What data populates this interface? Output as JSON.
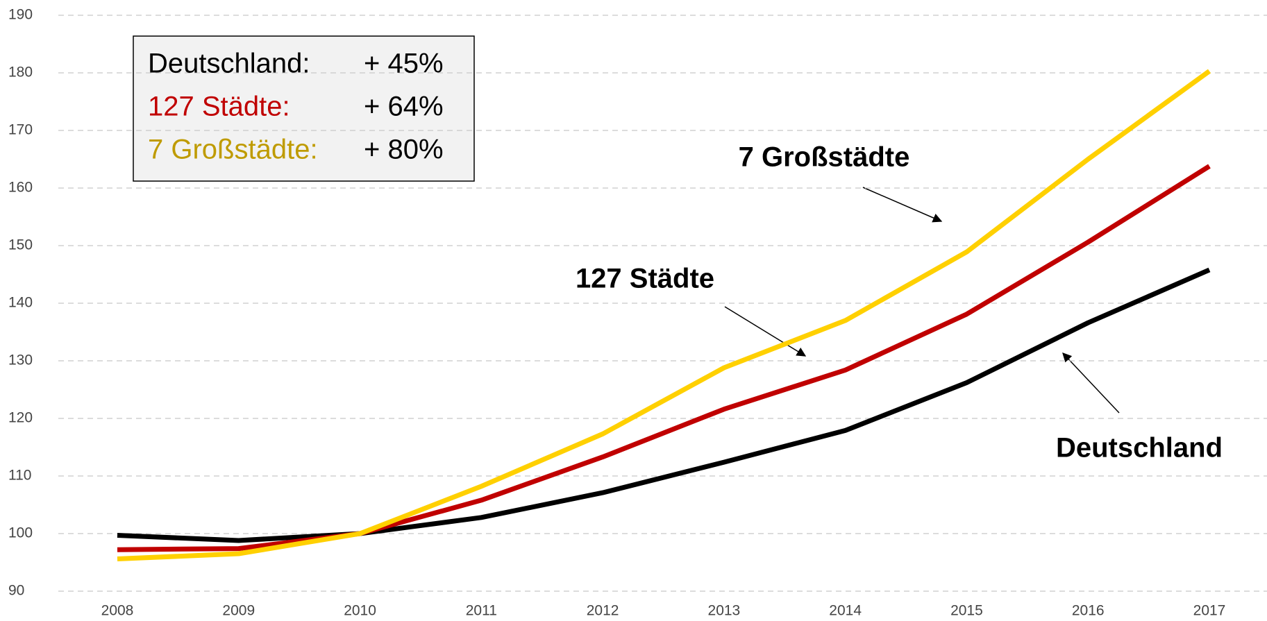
{
  "chart_data": {
    "type": "line",
    "categories": [
      "2008",
      "2009",
      "2010",
      "2011",
      "2012",
      "2013",
      "2014",
      "2015",
      "2016",
      "2017"
    ],
    "series": [
      {
        "name": "Deutschland",
        "color": "#000000",
        "values": [
          99.7,
          98.8,
          100,
          102.8,
          107.1,
          112.4,
          117.9,
          126.2,
          136.6,
          145.8
        ]
      },
      {
        "name": "127 Städte",
        "color": "#c00000",
        "values": [
          97.2,
          97.4,
          100,
          105.8,
          113.3,
          121.6,
          128.4,
          138.1,
          150.6,
          163.8
        ]
      },
      {
        "name": "7 Großstädte",
        "color": "#ffd000",
        "values": [
          95.6,
          96.5,
          100,
          108.2,
          117.3,
          128.8,
          137.0,
          148.9,
          165.0,
          180.3
        ]
      }
    ],
    "ylim": [
      90,
      190
    ],
    "yticks": [
      90,
      100,
      110,
      120,
      130,
      140,
      150,
      160,
      170,
      180,
      190
    ],
    "grid": true,
    "summary": [
      {
        "label": "Deutschland:",
        "change": "+ 45%",
        "color": "#000000"
      },
      {
        "label": "127 Städte:",
        "change": "+ 64%",
        "color": "#c00000"
      },
      {
        "label": "7 Großstädte:",
        "change": "+ 80%",
        "color": "#bf9b00"
      }
    ]
  }
}
